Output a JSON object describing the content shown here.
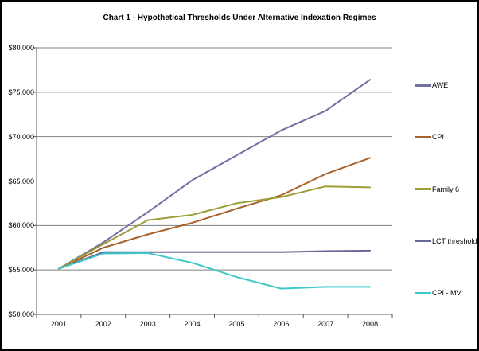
{
  "title": "Chart 1 - Hypothetical Thresholds Under Alternative Indexation Regimes",
  "chart_data": {
    "type": "line",
    "x": [
      2001,
      2002,
      2003,
      2004,
      2005,
      2006,
      2007,
      2008
    ],
    "series": [
      {
        "name": "AWE",
        "color": "#7070A3",
        "values": [
          55134,
          58100,
          61500,
          65100,
          67900,
          70700,
          72900,
          76400
        ]
      },
      {
        "name": "CPI",
        "color": "#A8622E",
        "values": [
          55134,
          57500,
          59000,
          60300,
          61900,
          63400,
          65800,
          67600
        ]
      },
      {
        "name": "Family 6",
        "color": "#9D9D3A",
        "values": [
          55134,
          57900,
          60600,
          61200,
          62500,
          63200,
          64400,
          64300
        ]
      },
      {
        "name": "LCT threshold",
        "color": "#68689B",
        "values": [
          55134,
          57009,
          57009,
          57009,
          57009,
          57009,
          57123,
          57180
        ]
      },
      {
        "name": "CPI - MV",
        "color": "#3FC8C8",
        "values": [
          55134,
          56850,
          56900,
          55800,
          54200,
          52900,
          53100,
          53100
        ]
      }
    ],
    "ylim": [
      50000,
      80000
    ],
    "y_tick_step": 5000,
    "y_tick_labels": [
      "$50,000",
      "$55,000",
      "$60,000",
      "$65,000",
      "$70,000",
      "$75,000",
      "$80,000"
    ],
    "x_tick_labels": [
      "2001",
      "2002",
      "2003",
      "2004",
      "2005",
      "2006",
      "2007",
      "2008"
    ],
    "grid": "horizontal",
    "legend_position": "right",
    "xlabel": "",
    "ylabel": ""
  },
  "colors": {
    "grid": "#808080",
    "axis": "#595959",
    "background": "#FFFFFF",
    "border": "#000000",
    "text": "#000000"
  }
}
